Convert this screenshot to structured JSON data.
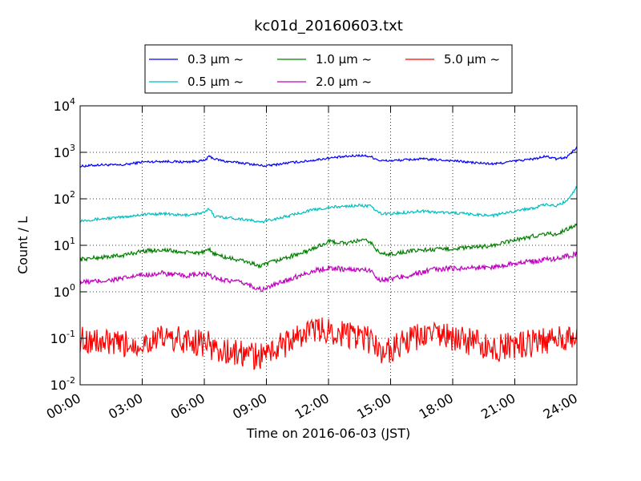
{
  "chart_data": {
    "type": "line",
    "title": "kc01d_20160603.txt",
    "xlabel": "Time on 2016-06-03 (JST)",
    "ylabel": "Count / L",
    "yscale": "log",
    "ylim": [
      0.01,
      10000
    ],
    "xlim": [
      "00:00",
      "24:00"
    ],
    "x_ticks": [
      "00:00",
      "03:00",
      "06:00",
      "09:00",
      "12:00",
      "15:00",
      "18:00",
      "21:00",
      "24:00"
    ],
    "y_ticks": [
      {
        "base": "10",
        "exp": "-2",
        "value": 0.01
      },
      {
        "base": "10",
        "exp": "-1",
        "value": 0.1
      },
      {
        "base": "10",
        "exp": "0",
        "value": 1
      },
      {
        "base": "10",
        "exp": "1",
        "value": 10
      },
      {
        "base": "10",
        "exp": "2",
        "value": 100
      },
      {
        "base": "10",
        "exp": "3",
        "value": 1000
      },
      {
        "base": "10",
        "exp": "4",
        "value": 10000
      }
    ],
    "grid": true,
    "legend_position": "top",
    "x_hours": [
      0,
      1,
      2,
      3,
      4,
      5,
      6,
      6.25,
      6.5,
      7,
      8,
      8.75,
      9,
      10,
      11,
      12,
      13,
      13.5,
      14,
      14.5,
      15,
      16,
      16.5,
      17,
      18,
      19,
      20,
      21,
      22,
      22.5,
      23,
      23.5,
      24
    ],
    "series": [
      {
        "name": "0.3 μm ~",
        "color": "#0000ff",
        "noise": 0.025,
        "values": [
          500,
          540,
          530,
          620,
          640,
          620,
          660,
          820,
          720,
          640,
          580,
          520,
          510,
          590,
          650,
          750,
          820,
          860,
          820,
          660,
          660,
          700,
          720,
          700,
          660,
          600,
          560,
          650,
          730,
          820,
          720,
          780,
          1300
        ]
      },
      {
        "name": "0.5 μm ~",
        "color": "#00bfbf",
        "noise": 0.03,
        "values": [
          34,
          37,
          40,
          46,
          48,
          44,
          50,
          62,
          42,
          40,
          36,
          31,
          34,
          42,
          55,
          65,
          70,
          72,
          70,
          48,
          48,
          52,
          55,
          52,
          50,
          46,
          44,
          55,
          65,
          75,
          70,
          90,
          180
        ]
      },
      {
        "name": "1.0 μm ~",
        "color": "#008000",
        "noise": 0.045,
        "values": [
          5,
          5.5,
          6,
          7.5,
          8,
          7,
          7,
          8,
          6.5,
          5.5,
          4.5,
          3.5,
          4,
          5.5,
          7.5,
          12,
          11,
          13,
          12,
          6.5,
          6.5,
          7.5,
          8,
          8,
          8.5,
          9,
          10,
          13,
          16,
          18,
          17,
          22,
          28
        ]
      },
      {
        "name": "2.0 μm ~",
        "color": "#bf00bf",
        "noise": 0.055,
        "values": [
          1.6,
          1.7,
          1.9,
          2.3,
          2.5,
          2.2,
          2.4,
          2.2,
          2,
          1.8,
          1.5,
          1.1,
          1.2,
          1.8,
          2.6,
          3.3,
          3,
          3,
          2.9,
          1.8,
          1.9,
          2.3,
          2.6,
          3,
          3.2,
          3.3,
          3.4,
          4.2,
          4.5,
          5,
          5.2,
          5.8,
          6.5
        ]
      },
      {
        "name": "5.0 μm ~",
        "color": "#ff0000",
        "noise": 0.3,
        "values": [
          0.1,
          0.08,
          0.07,
          0.08,
          0.1,
          0.09,
          0.08,
          0.07,
          0.06,
          0.05,
          0.045,
          0.04,
          0.05,
          0.08,
          0.14,
          0.15,
          0.12,
          0.1,
          0.09,
          0.05,
          0.06,
          0.09,
          0.11,
          0.13,
          0.1,
          0.08,
          0.06,
          0.07,
          0.08,
          0.09,
          0.09,
          0.1,
          0.1
        ]
      }
    ]
  }
}
